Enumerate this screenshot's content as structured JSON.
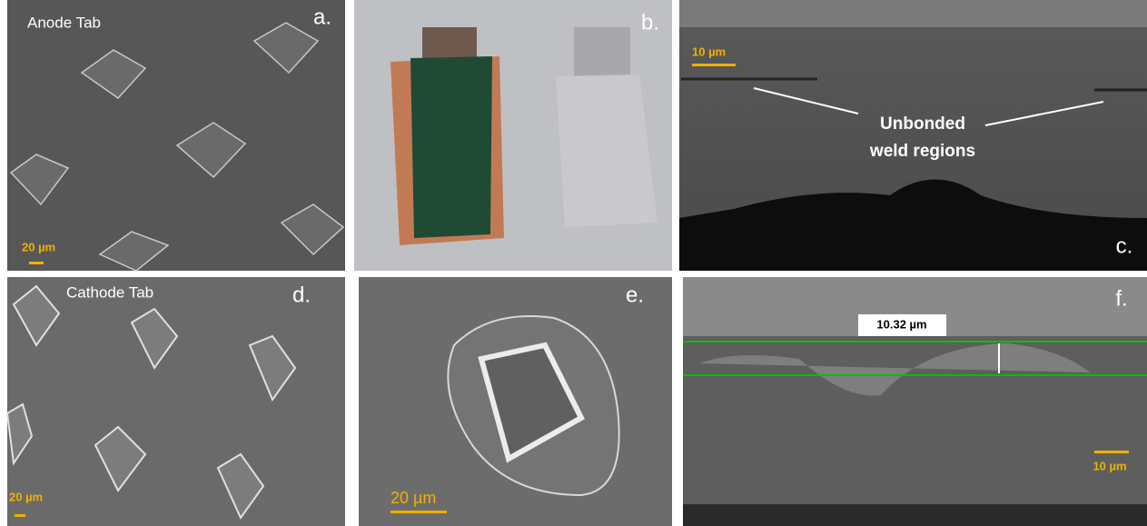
{
  "panels": [
    {
      "letter": "a.",
      "caption": "Anode Tab",
      "scale_bar": "20 µm"
    },
    {
      "letter": "b."
    },
    {
      "letter": "c.",
      "scale_bar": "10 µm",
      "annotation": [
        "Unbonded",
        "weld regions"
      ]
    },
    {
      "letter": "d.",
      "caption": "Cathode Tab",
      "scale_bar": "20 µm"
    },
    {
      "letter": "e.",
      "scale_bar": "20 µm"
    },
    {
      "letter": "f.",
      "measurement": "10.32 µm",
      "scale_bar": "10 µm"
    }
  ]
}
